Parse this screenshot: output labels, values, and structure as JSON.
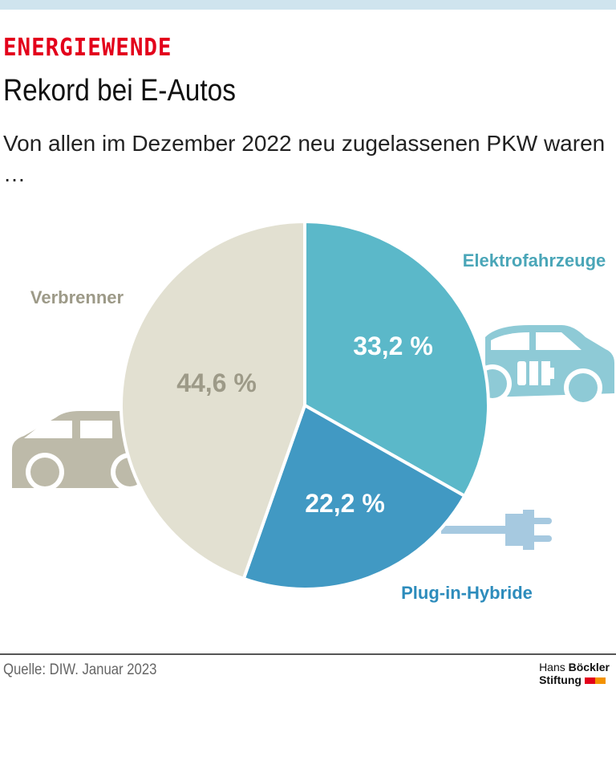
{
  "header": {
    "kicker": "ENERGIEWENDE",
    "title": "Rekord bei E-Autos",
    "subtitle": "Von allen im Dezember 2022 neu zugelassenen PKW waren …"
  },
  "chart_data": {
    "type": "pie",
    "start": "top, clockwise",
    "slices": [
      {
        "name": "Elektrofahrzeuge",
        "value": 33.2,
        "label": "33,2 %",
        "color": "#5bb8c9",
        "label_color": "#4aa6b8",
        "icon": "electric-car-icon",
        "icon_color": "#8ecad6"
      },
      {
        "name": "Plug-in-Hybride",
        "value": 22.2,
        "label": "22,2 %",
        "color": "#4199c3",
        "label_color": "#2d8cbc",
        "icon": "plug-icon",
        "icon_color": "#a6c9e0"
      },
      {
        "name": "Verbrenner",
        "value": 44.6,
        "label": "44,6 %",
        "color": "#e2e0d1",
        "label_color": "#9d9a88",
        "icon": "car-icon",
        "icon_color": "#bdbaa9"
      }
    ]
  },
  "footer": {
    "source": "Quelle: DIW. Januar 2023",
    "logo_line1_a": "Hans ",
    "logo_line1_b": "Böckler",
    "logo_line2": "Stiftung",
    "logo_colors": [
      "#e3001b",
      "#f39200"
    ]
  }
}
